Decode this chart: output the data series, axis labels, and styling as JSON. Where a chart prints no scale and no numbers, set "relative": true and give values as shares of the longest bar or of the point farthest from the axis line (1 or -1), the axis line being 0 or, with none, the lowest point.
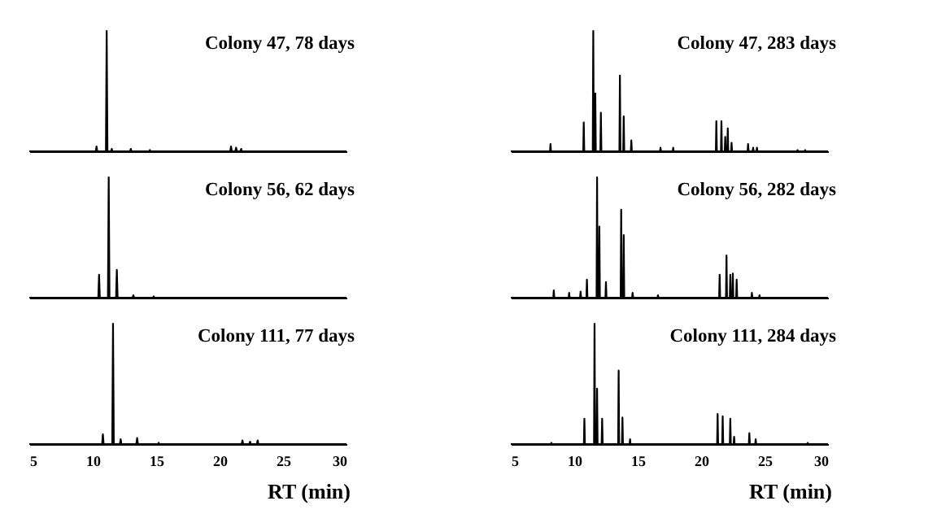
{
  "chart_data": [
    {
      "type": "line",
      "relative": true,
      "title": "Colony 47, 78 days",
      "xlim": [
        5,
        30
      ],
      "xticks": [
        5,
        10,
        15,
        20,
        25,
        30
      ],
      "tick_labels": false,
      "series": [
        {
          "color": "#000000",
          "x": [
            5,
            10.24,
            10.3,
            10.36,
            11.04,
            11.1,
            11.16,
            11.44,
            11.5,
            11.56,
            12.94,
            13.0,
            13.06,
            14.44,
            14.5,
            14.56,
            20.84,
            20.9,
            20.96,
            21.24,
            21.3,
            21.36,
            21.64,
            21.7,
            21.76,
            30
          ],
          "values": [
            0,
            0,
            0.04,
            0,
            0,
            1,
            0,
            0,
            0.02,
            0,
            0,
            0.02,
            0,
            0,
            0.01,
            0,
            0,
            0.04,
            0,
            0,
            0.03,
            0,
            0,
            0.02,
            0,
            0
          ]
        }
      ]
    },
    {
      "type": "line",
      "relative": true,
      "title": "Colony 47, 283 days",
      "xlim": [
        5,
        30
      ],
      "xticks": [
        5,
        10,
        15,
        20,
        25,
        30
      ],
      "tick_labels": false,
      "series": [
        {
          "color": "#000000",
          "x": [
            5,
            8.09,
            8.13,
            8.17,
            10.71,
            10.75,
            10.79,
            11.46,
            11.5,
            11.54,
            11.62,
            11.66,
            11.7,
            12.06,
            12.1,
            12.14,
            13.56,
            13.6,
            13.64,
            13.86,
            13.9,
            13.94,
            14.46,
            14.5,
            14.54,
            16.76,
            16.8,
            16.84,
            17.76,
            17.8,
            17.84,
            21.16,
            21.2,
            21.24,
            21.56,
            21.6,
            21.64,
            21.86,
            21.9,
            21.94,
            22.06,
            22.1,
            22.14,
            22.36,
            22.4,
            22.44,
            23.66,
            23.7,
            23.74,
            24.06,
            24.1,
            24.14,
            24.36,
            24.4,
            24.44,
            27.56,
            27.6,
            27.64,
            28.16,
            28.2,
            28.24,
            30
          ],
          "values": [
            0,
            0,
            0.06,
            0,
            0,
            0.24,
            0,
            0,
            1,
            0,
            0,
            0.48,
            0,
            0,
            0.32,
            0,
            0,
            0.63,
            0,
            0,
            0.29,
            0,
            0,
            0.09,
            0,
            0,
            0.03,
            0,
            0,
            0.03,
            0,
            0,
            0.25,
            0,
            0,
            0.25,
            0,
            0,
            0.12,
            0,
            0,
            0.19,
            0,
            0,
            0.07,
            0,
            0,
            0.06,
            0,
            0,
            0.03,
            0,
            0,
            0.03,
            0,
            0,
            0.01,
            0,
            0,
            0.01,
            0,
            0
          ]
        }
      ]
    },
    {
      "type": "line",
      "relative": true,
      "title": "Colony 56, 62 days",
      "xlim": [
        5,
        30
      ],
      "xticks": [
        5,
        10,
        15,
        20,
        25,
        30
      ],
      "tick_labels": false,
      "series": [
        {
          "color": "#000000",
          "x": [
            5,
            10.44,
            10.5,
            10.56,
            11.2,
            11.26,
            11.32,
            11.84,
            11.9,
            11.96,
            13.14,
            13.2,
            13.26,
            14.74,
            14.8,
            14.86,
            30
          ],
          "values": [
            0,
            0,
            0.19,
            0,
            0,
            1,
            0,
            0,
            0.23,
            0,
            0,
            0.02,
            0,
            0,
            0.01,
            0,
            0
          ]
        }
      ]
    },
    {
      "type": "line",
      "relative": true,
      "title": "Colony 56, 282 days",
      "xlim": [
        5,
        30
      ],
      "xticks": [
        5,
        10,
        15,
        20,
        25,
        30
      ],
      "tick_labels": false,
      "series": [
        {
          "color": "#000000",
          "x": [
            5,
            8.35,
            8.39,
            8.43,
            9.56,
            9.6,
            9.64,
            10.46,
            10.5,
            10.54,
            10.96,
            11.0,
            11.04,
            11.76,
            11.8,
            11.84,
            11.94,
            11.98,
            12.02,
            12.46,
            12.5,
            12.54,
            13.66,
            13.7,
            13.74,
            13.86,
            13.9,
            13.94,
            14.56,
            14.6,
            14.64,
            16.56,
            16.6,
            16.64,
            21.42,
            21.46,
            21.5,
            21.96,
            22.0,
            22.04,
            22.26,
            22.3,
            22.34,
            22.46,
            22.5,
            22.54,
            22.76,
            22.8,
            22.84,
            23.96,
            24.0,
            24.04,
            24.56,
            24.6,
            24.64,
            30
          ],
          "values": [
            0,
            0,
            0.06,
            0,
            0,
            0.04,
            0,
            0,
            0.05,
            0,
            0,
            0.15,
            0,
            0,
            1,
            0,
            0,
            0.59,
            0,
            0,
            0.13,
            0,
            0,
            0.73,
            0,
            0,
            0.52,
            0,
            0,
            0.04,
            0,
            0,
            0.02,
            0,
            0,
            0.19,
            0,
            0,
            0.35,
            0,
            0,
            0.19,
            0,
            0,
            0.2,
            0,
            0,
            0.15,
            0,
            0,
            0.04,
            0,
            0,
            0.02,
            0,
            0
          ]
        }
      ]
    },
    {
      "type": "line",
      "relative": true,
      "title": "Colony 111, 77 days",
      "xlabel": "RT (min)",
      "xlim": [
        5,
        30
      ],
      "xticks": [
        5,
        10,
        15,
        20,
        25,
        30
      ],
      "tick_labels": "x",
      "series": [
        {
          "color": "#000000",
          "x": [
            5,
            10.74,
            10.8,
            10.86,
            11.54,
            11.6,
            11.66,
            12.14,
            12.2,
            12.26,
            13.44,
            13.5,
            13.56,
            15.14,
            15.2,
            15.26,
            21.74,
            21.8,
            21.86,
            22.34,
            22.4,
            22.46,
            22.94,
            23.0,
            23.06,
            30
          ],
          "values": [
            0,
            0,
            0.08,
            0,
            0,
            1,
            0,
            0,
            0.04,
            0,
            0,
            0.05,
            0,
            0,
            0.01,
            0,
            0,
            0.03,
            0,
            0,
            0.02,
            0,
            0,
            0.03,
            0,
            0
          ]
        }
      ]
    },
    {
      "type": "line",
      "relative": true,
      "title": "Colony 111,  284 days",
      "xlabel": "RT (min)",
      "xlim": [
        5,
        30
      ],
      "xticks": [
        5,
        10,
        15,
        20,
        25,
        30
      ],
      "tick_labels": "x",
      "series": [
        {
          "color": "#000000",
          "x": [
            5,
            8.16,
            8.2,
            8.24,
            10.76,
            10.8,
            10.84,
            11.56,
            11.6,
            11.64,
            11.76,
            11.8,
            11.84,
            12.16,
            12.2,
            12.24,
            13.46,
            13.5,
            13.54,
            13.76,
            13.8,
            13.84,
            14.36,
            14.4,
            14.44,
            21.26,
            21.3,
            21.34,
            21.66,
            21.7,
            21.74,
            22.26,
            22.3,
            22.34,
            22.56,
            22.6,
            22.64,
            23.76,
            23.8,
            23.84,
            24.26,
            24.3,
            24.34,
            28.36,
            28.4,
            28.44,
            30
          ],
          "values": [
            0,
            0,
            0.01,
            0,
            0,
            0.21,
            0,
            0,
            1,
            0,
            0,
            0.46,
            0,
            0,
            0.21,
            0,
            0,
            0.61,
            0,
            0,
            0.22,
            0,
            0,
            0.04,
            0,
            0,
            0.25,
            0,
            0,
            0.23,
            0,
            0,
            0.21,
            0,
            0,
            0.06,
            0,
            0,
            0.09,
            0,
            0,
            0.04,
            0,
            0,
            0.01,
            0,
            0
          ]
        }
      ]
    }
  ]
}
